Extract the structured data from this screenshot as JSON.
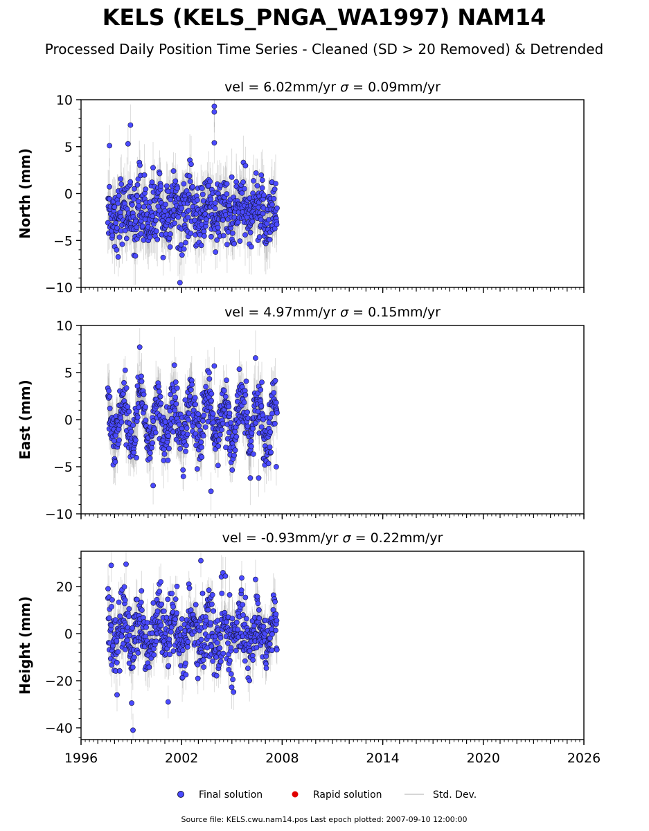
{
  "figure": {
    "title": "KELS (KELS_PNGA_WA1997) NAM14",
    "subtitle": "Processed Daily Position Time Series - Cleaned (SD > 20 Removed) & Detrended",
    "source_note": "Source file: KELS.cwu.nam14.pos  Last epoch plotted: 2007-09-10 12:00:00"
  },
  "legend": {
    "items": [
      {
        "label": "Final solution",
        "color": "#4a4aff",
        "marker": "circle"
      },
      {
        "label": "Rapid solution",
        "color": "#e00000",
        "marker": "circle"
      },
      {
        "label": "Std. Dev.",
        "color": "#c8c8c8",
        "marker": "line"
      }
    ]
  },
  "colors": {
    "point_fill": "#4a4aff",
    "point_edge": "#14143c",
    "error_bar": "#9a9a9a"
  },
  "chart_data": [
    {
      "type": "scatter",
      "component": "north",
      "title_vel": "vel = 6.02mm/yr",
      "title_sigma_sym": "σ",
      "title_sigma": " = 0.09mm/yr",
      "ylabel": "North (mm)",
      "xlim": [
        1996,
        2026
      ],
      "ylim": [
        -10,
        10
      ],
      "yticks": [
        10,
        5,
        0,
        -5,
        -10
      ],
      "yticklabels": [
        "10",
        "5",
        "0",
        "−5",
        "−10"
      ],
      "data_start": 1997.6,
      "data_end": 2007.69,
      "mean": -2.0,
      "spread": 1.8,
      "seasonal_amplitude": 0.8,
      "std_dev_mean": 2.2,
      "outliers": [
        {
          "x": 2003.95,
          "y": 9.3
        },
        {
          "x": 2003.95,
          "y": 8.7
        },
        {
          "x": 2003.95,
          "y": 5.4
        },
        {
          "x": 1998.95,
          "y": 7.3
        },
        {
          "x": 2001.9,
          "y": -9.5
        },
        {
          "x": 1997.7,
          "y": 5.1
        },
        {
          "x": 1998.8,
          "y": 5.3
        }
      ]
    },
    {
      "type": "scatter",
      "component": "east",
      "title_vel": "vel = 4.97mm/yr",
      "title_sigma_sym": "σ",
      "title_sigma": " = 0.15mm/yr",
      "ylabel": "East (mm)",
      "xlim": [
        1996,
        2026
      ],
      "ylim": [
        -10,
        10
      ],
      "yticks": [
        10,
        5,
        0,
        -5,
        -10
      ],
      "yticklabels": [
        "10",
        "5",
        "0",
        "−5",
        "−10"
      ],
      "data_start": 1997.6,
      "data_end": 2007.69,
      "mean": 0.0,
      "spread": 1.5,
      "seasonal_amplitude": 2.4,
      "std_dev_mean": 2.0,
      "outliers": [
        {
          "x": 1999.5,
          "y": 7.7
        },
        {
          "x": 2003.95,
          "y": 5.7
        },
        {
          "x": 2003.75,
          "y": -7.6
        },
        {
          "x": 2007.65,
          "y": -5.0
        },
        {
          "x": 2006.6,
          "y": -6.2
        },
        {
          "x": 2000.3,
          "y": -7.0
        }
      ]
    },
    {
      "type": "scatter",
      "component": "height",
      "title_vel": "vel = -0.93mm/yr",
      "title_sigma_sym": "σ",
      "title_sigma": " = 0.22mm/yr",
      "ylabel": "Height (mm)",
      "xlim": [
        1996,
        2026
      ],
      "ylim": [
        -45,
        35
      ],
      "yticks": [
        20,
        0,
        -20,
        -40
      ],
      "yticklabels": [
        "20",
        "0",
        "−20",
        "−40"
      ],
      "data_start": 1997.6,
      "data_end": 2007.69,
      "mean": 0.0,
      "spread": 7.5,
      "seasonal_amplitude": 6.0,
      "std_dev_mean": 7.0,
      "outliers": [
        {
          "x": 1997.8,
          "y": 29.0
        },
        {
          "x": 2003.15,
          "y": 31.0
        },
        {
          "x": 1999.1,
          "y": -41.0
        },
        {
          "x": 2001.2,
          "y": -29.0
        },
        {
          "x": 1998.15,
          "y": -26.0
        }
      ]
    }
  ],
  "xaxis": {
    "ticks": [
      1996,
      2002,
      2008,
      2014,
      2020,
      2026
    ],
    "ticklabels": [
      "1996",
      "2002",
      "2008",
      "2014",
      "2020",
      "2026"
    ]
  }
}
